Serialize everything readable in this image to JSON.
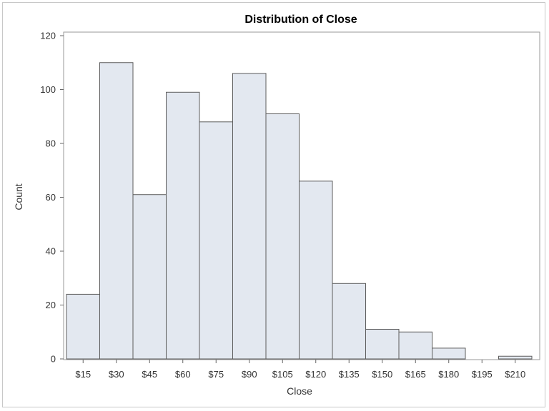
{
  "chart_data": {
    "type": "bar",
    "title": "Distribution of Close",
    "xlabel": "Close",
    "ylabel": "Count",
    "categories": [
      "$15",
      "$30",
      "$45",
      "$60",
      "$75",
      "$90",
      "$105",
      "$120",
      "$135",
      "$150",
      "$165",
      "$180",
      "$195",
      "$210"
    ],
    "values": [
      24,
      110,
      61,
      99,
      88,
      106,
      91,
      66,
      28,
      11,
      10,
      4,
      0,
      1
    ],
    "ylim": [
      0,
      120
    ],
    "yticks": [
      0,
      20,
      40,
      60,
      80,
      100,
      120
    ],
    "grid": false,
    "legend": "none",
    "colors": {
      "bar_fill": "#e3e8f0",
      "bar_stroke": "#5c5c5c"
    }
  }
}
